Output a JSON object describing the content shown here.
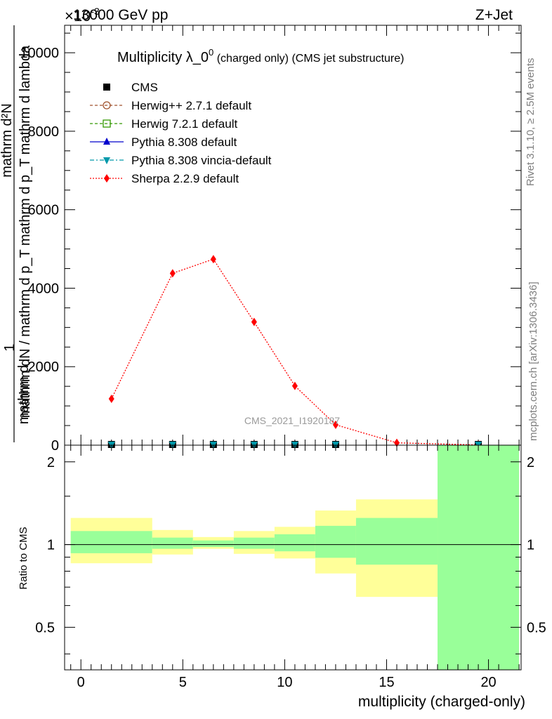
{
  "header": {
    "energy_label": "13000 GeV pp",
    "process_label": "Z+Jet",
    "exponent_label": "×10",
    "exponent_sup": "-3"
  },
  "side_labels": {
    "rivet": "Rivet 3.1.10, ≥ 2.5M events",
    "mcplots": "mcplots.cern.ch [arXiv:1306.3436]"
  },
  "chart_data": [
    {
      "type": "line",
      "title": "Multiplicity λ_0",
      "title_sup": "0",
      "title_suffix_small": " (charged only) (CMS jet substructure)",
      "watermark": "CMS_2021_I1920187",
      "ylabel_top": "1",
      "ylabel_top_extra": "mathrm d",
      "ylabel_num": "mathrm d²N",
      "ylabel_den": "mathrm dN / mathrm d p_T mathrm d p_T mathrm d lambda",
      "y_ticks": [
        0,
        2000,
        4000,
        6000,
        8000,
        10000
      ],
      "y_tick_labels": [
        "0",
        "2000",
        "4000",
        "6000",
        "8000",
        "10000"
      ],
      "ylim": [
        0,
        10700
      ],
      "xlim": [
        -0.8,
        21.6
      ],
      "legend": [
        {
          "name": "CMS",
          "color": "#000000",
          "marker": "square-filled",
          "dash": "none"
        },
        {
          "name": "Herwig++ 2.7.1 default",
          "color": "#a0522d",
          "marker": "circle-open",
          "dash": "4,3"
        },
        {
          "name": "Herwig 7.2.1 default",
          "color": "#339900",
          "marker": "square-open",
          "dash": "4,3"
        },
        {
          "name": "Pythia 8.308 default",
          "color": "#0000cc",
          "marker": "triangle-up",
          "dash": "none"
        },
        {
          "name": "Pythia 8.308 vincia-default",
          "color": "#0099aa",
          "marker": "triangle-down",
          "dash": "6,3,2,3"
        },
        {
          "name": "Sherpa 2.2.9 default",
          "color": "#ff0000",
          "marker": "diamond",
          "dash": "2,2"
        }
      ],
      "legend_placement": "top-left",
      "series": [
        {
          "name": "Sherpa 2.2.9 default",
          "color": "#ff0000",
          "x": [
            1.5,
            4.5,
            6.5,
            8.5,
            10.5,
            12.5,
            15.5,
            19.5
          ],
          "values": [
            1180,
            4380,
            4740,
            3140,
            1510,
            520,
            60,
            5
          ]
        },
        {
          "name": "CMS",
          "color": "#000000",
          "x": [
            1.5,
            4.5,
            6.5,
            8.5,
            10.5,
            12.5,
            19.5
          ],
          "values": [
            0,
            0,
            0,
            0,
            0,
            0,
            0
          ]
        },
        {
          "name": "Pythia 8.308 vincia-default",
          "color": "#0099aa",
          "x": [
            1.5,
            4.5,
            6.5,
            8.5,
            10.5,
            12.5,
            19.5
          ],
          "values": [
            0,
            0,
            0,
            0,
            0,
            0,
            0
          ]
        }
      ]
    },
    {
      "type": "area",
      "ylabel": "Ratio to CMS",
      "xlabel": "multiplicity (charged-only)",
      "x_ticks": [
        0,
        5,
        10,
        15,
        20
      ],
      "x_tick_labels": [
        "0",
        "5",
        "10",
        "15",
        "20"
      ],
      "y_ticks": [
        0.5,
        1,
        2
      ],
      "y_tick_labels": [
        "0.5",
        "1",
        "2"
      ],
      "y_scale": "log",
      "ylim": [
        0.35,
        2.3
      ],
      "xlim": [
        -0.8,
        21.6
      ],
      "reference_line": 1,
      "bands": [
        {
          "x_lo": -0.5,
          "x_hi": 3.5,
          "yellow": [
            0.855,
            1.25
          ],
          "green": [
            0.93,
            1.12
          ]
        },
        {
          "x_lo": 3.5,
          "x_hi": 5.5,
          "yellow": [
            0.92,
            1.13
          ],
          "green": [
            0.965,
            1.06
          ]
        },
        {
          "x_lo": 5.5,
          "x_hi": 7.5,
          "yellow": [
            0.965,
            1.065
          ],
          "green": [
            0.98,
            1.035
          ]
        },
        {
          "x_lo": 7.5,
          "x_hi": 9.5,
          "yellow": [
            0.925,
            1.12
          ],
          "green": [
            0.965,
            1.06
          ]
        },
        {
          "x_lo": 9.5,
          "x_hi": 11.5,
          "yellow": [
            0.89,
            1.16
          ],
          "green": [
            0.945,
            1.09
          ]
        },
        {
          "x_lo": 11.5,
          "x_hi": 13.5,
          "yellow": [
            0.785,
            1.33
          ],
          "green": [
            0.895,
            1.17
          ]
        },
        {
          "x_lo": 13.5,
          "x_hi": 17.5,
          "yellow": [
            0.645,
            1.46
          ],
          "green": [
            0.845,
            1.25
          ]
        },
        {
          "x_lo": 17.5,
          "x_hi": 21.5,
          "yellow": [
            0.35,
            2.3
          ],
          "green": [
            0.35,
            2.3
          ]
        }
      ]
    }
  ]
}
